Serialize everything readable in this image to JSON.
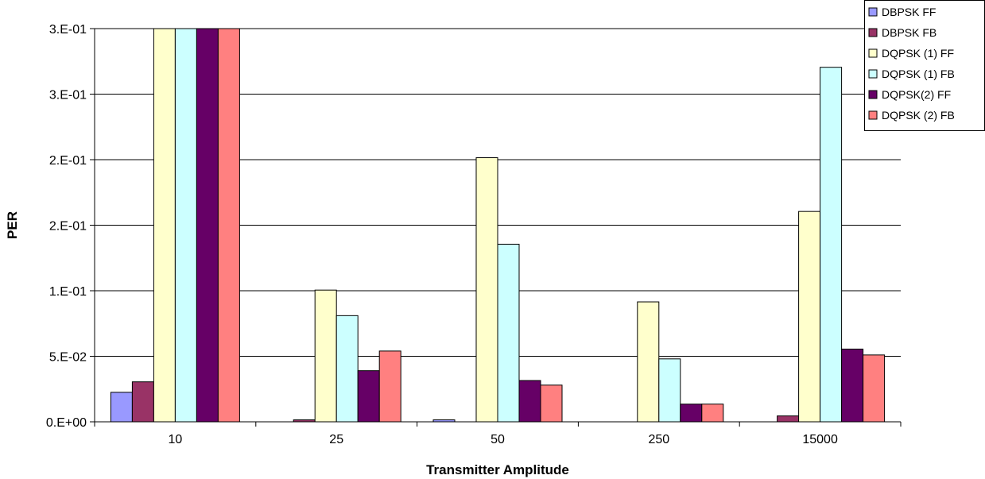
{
  "chart_data": {
    "type": "bar",
    "title": "",
    "xlabel": "Transmitter Amplitude",
    "ylabel": "PER",
    "categories": [
      "10",
      "25",
      "50",
      "250",
      "15000"
    ],
    "ylim": [
      0,
      0.3
    ],
    "yticks": [
      0,
      0.05,
      0.1,
      0.15,
      0.2,
      0.25,
      0.3
    ],
    "ytick_labels": [
      "0.E+00",
      "5.E-02",
      "1.E-01",
      "2.E-01",
      "2.E-01",
      "3.E-01",
      "3.E-01"
    ],
    "grid": true,
    "legend_position": "top-right",
    "series": [
      {
        "name": "DBPSK FF",
        "color": "#9999ff",
        "values": [
          0.0225,
          0.0,
          0.0015,
          0.0,
          0.0
        ]
      },
      {
        "name": "DBPSK FB",
        "color": "#993366",
        "values": [
          0.0305,
          0.0015,
          0.0,
          0.0,
          0.0045
        ]
      },
      {
        "name": "DQPSK (1) FF",
        "color": "#ffffcc",
        "values": [
          0.3,
          0.1005,
          0.2015,
          0.0915,
          0.1605
        ]
      },
      {
        "name": "DQPSK (1) FB",
        "color": "#ccffff",
        "values": [
          0.3,
          0.081,
          0.1355,
          0.048,
          0.2705
        ]
      },
      {
        "name": "DQPSK(2) FF",
        "color": "#660066",
        "values": [
          0.3,
          0.039,
          0.0315,
          0.0135,
          0.0555
        ]
      },
      {
        "name": "DQPSK (2) FB",
        "color": "#ff8080",
        "values": [
          0.3,
          0.054,
          0.028,
          0.0135,
          0.051
        ]
      }
    ]
  }
}
